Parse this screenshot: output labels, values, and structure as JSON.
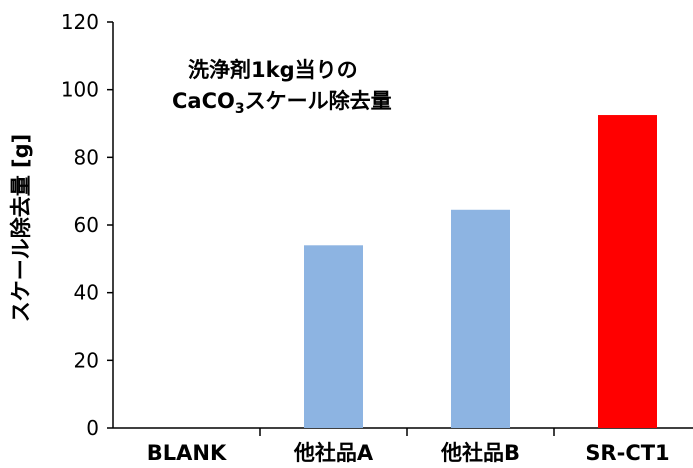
{
  "chart_data": {
    "type": "bar",
    "categories": [
      "BLANK",
      "他社品A",
      "他社品B",
      "SR-CT1"
    ],
    "values": [
      0,
      54,
      64.5,
      92.5
    ],
    "bar_colors": [
      "#8db4e2",
      "#8db4e2",
      "#8db4e2",
      "#ff0000"
    ],
    "ylabel": "スケール除去量 [g]",
    "ylim": [
      0,
      120
    ],
    "yticks": [
      0,
      20,
      40,
      60,
      80,
      100,
      120
    ],
    "grid": false,
    "annotation": {
      "line1": "洗浄剤1kg当りの",
      "line2_prefix": "CaCO",
      "line2_sub": "3",
      "line2_suffix": "スケール除去量"
    }
  }
}
